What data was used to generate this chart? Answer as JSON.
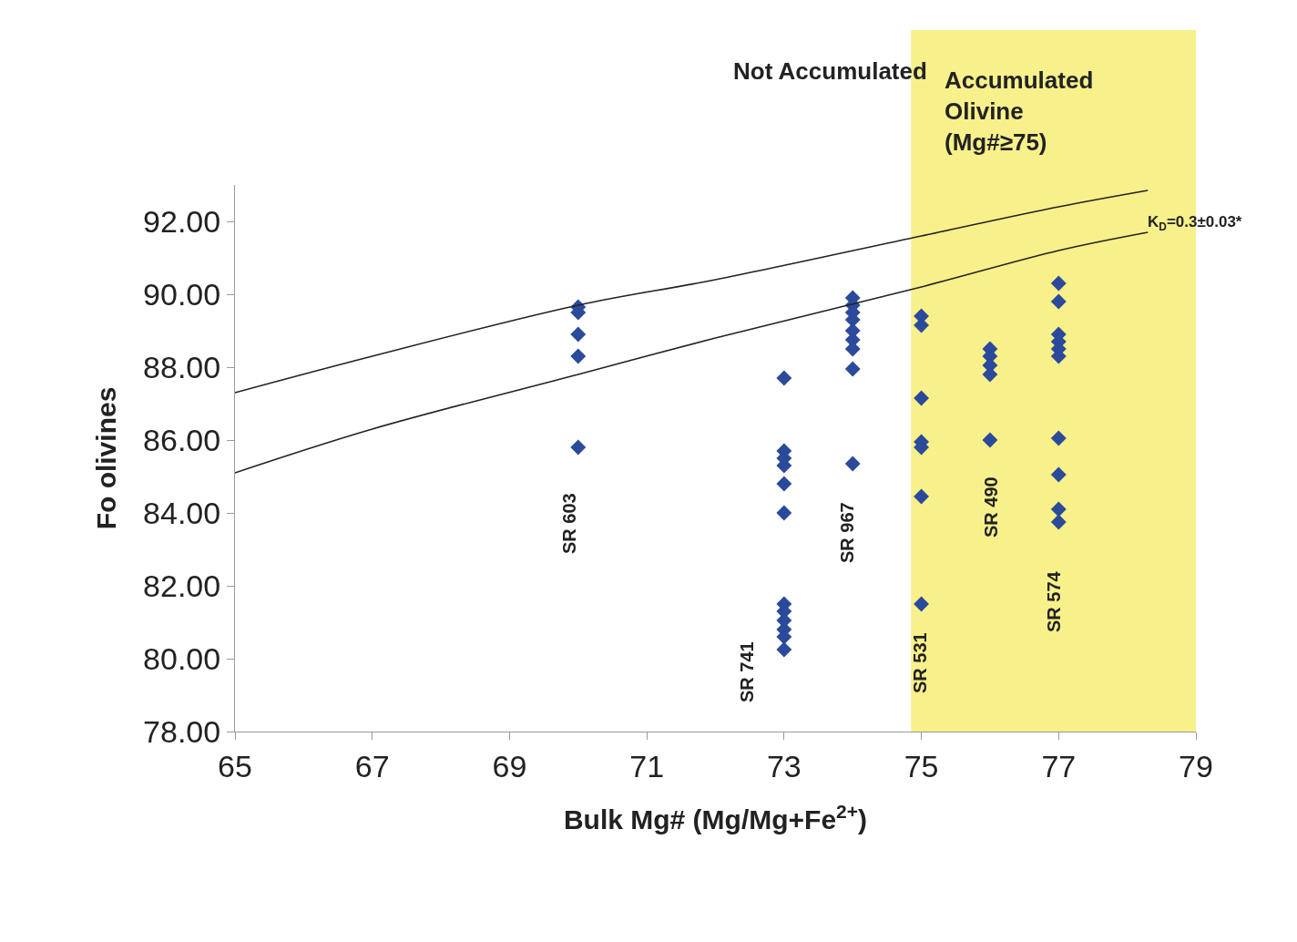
{
  "chart_data": {
    "type": "scatter",
    "xlabel": "Bulk Mg# (Mg/Mg+Fe$^{2+}$)",
    "ylabel": "Fo olivines",
    "xlim": [
      65,
      79
    ],
    "xticks": [
      65,
      67,
      69,
      71,
      73,
      75,
      77,
      79
    ],
    "ylim": [
      78,
      93
    ],
    "yticks": [
      {
        "value": 78,
        "label": "78.00"
      },
      {
        "value": 80,
        "label": "80.00"
      },
      {
        "value": 82,
        "label": "82.00"
      },
      {
        "value": 84,
        "label": "84.00"
      },
      {
        "value": 86,
        "label": "86.00"
      },
      {
        "value": 88,
        "label": "88.00"
      },
      {
        "value": 90,
        "label": "90.00"
      },
      {
        "value": 92,
        "label": "92.00"
      }
    ],
    "grid": false,
    "marker": "diamond",
    "series": [
      {
        "color": "#2b4a9b",
        "x": [
          70,
          70,
          70,
          70,
          70,
          73,
          73,
          73,
          73,
          73,
          73,
          73,
          73,
          73,
          73,
          73,
          73,
          74,
          74,
          74,
          74,
          74,
          74,
          74,
          74,
          74,
          75,
          75,
          75,
          75,
          75,
          75,
          75,
          76,
          76,
          76,
          76,
          76,
          77,
          77,
          77,
          77,
          77,
          77,
          77,
          77,
          77,
          77
        ],
        "values": [
          89.65,
          89.5,
          88.9,
          88.3,
          85.8,
          87.7,
          85.7,
          85.5,
          85.3,
          84.8,
          84.0,
          81.5,
          81.3,
          81.05,
          80.8,
          80.6,
          80.25,
          89.9,
          89.7,
          89.5,
          89.3,
          89.0,
          88.75,
          88.5,
          87.95,
          85.35,
          89.4,
          89.15,
          87.15,
          85.95,
          85.8,
          84.45,
          81.5,
          88.5,
          88.3,
          88.05,
          87.8,
          86.0,
          90.3,
          89.8,
          88.9,
          88.7,
          88.5,
          88.3,
          86.05,
          85.05,
          84.1,
          83.75
        ]
      },
      {
        "type": "line",
        "color": "#222222",
        "marker": "none",
        "x": [
          65,
          67,
          70,
          72,
          75,
          77,
          78.3
        ],
        "values": [
          87.3,
          88.3,
          89.7,
          90.4,
          91.6,
          92.4,
          92.85
        ]
      },
      {
        "type": "line",
        "color": "#222222",
        "marker": "none",
        "x": [
          65,
          67,
          70,
          72,
          75,
          77,
          78.3
        ],
        "values": [
          85.1,
          86.3,
          87.8,
          88.8,
          90.2,
          91.2,
          91.7
        ]
      }
    ],
    "bands": [
      {
        "axis": "x",
        "from": 74.85,
        "to": 79,
        "color": "#f8f08a"
      }
    ],
    "annotations": [
      "Not Accumulated",
      "Accumulated\nOlivine\n(Mg#≥75)",
      "K$_{D}$=0.3±0.03*",
      "SR 603",
      "SR 741",
      "SR 967",
      "SR 531",
      "SR 490",
      "SR 574"
    ]
  }
}
